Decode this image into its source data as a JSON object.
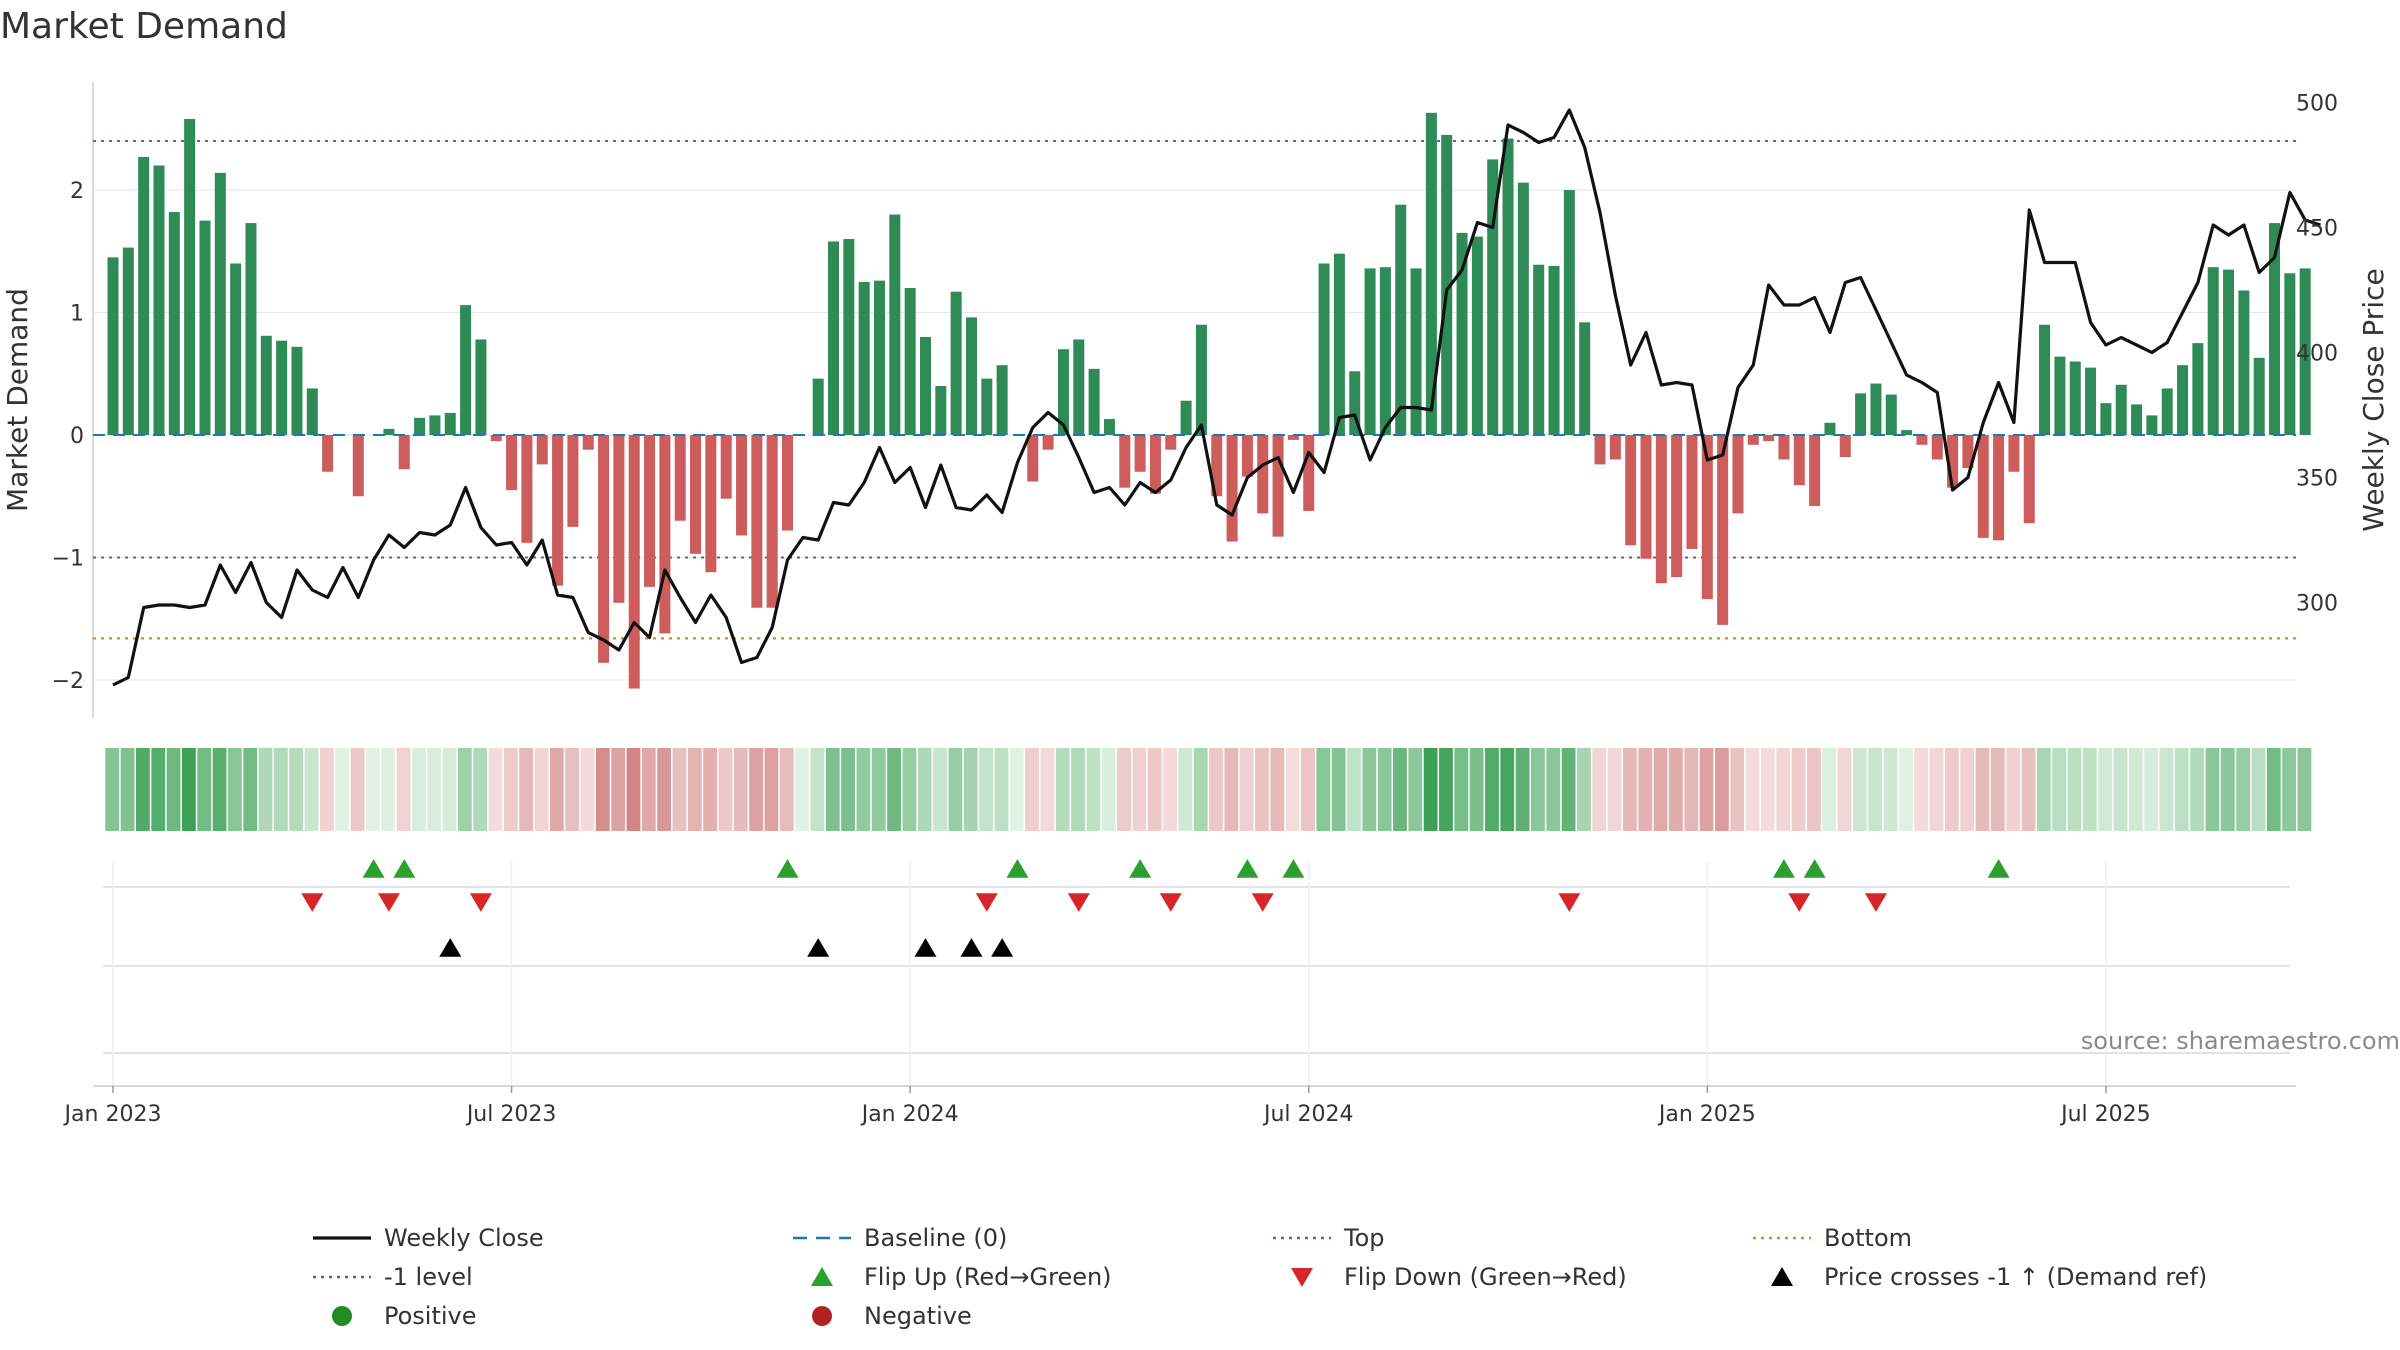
{
  "chart_data": {
    "type": "bar",
    "title": "Market Demand",
    "ylabel_left": "Market Demand",
    "ylabel_right": "Weekly Close Price",
    "ylim_left": [
      -2.3,
      2.9
    ],
    "ylim_right": [
      250,
      510
    ],
    "y_ticks_left": [
      "−2",
      "−1",
      "0",
      "1",
      "2"
    ],
    "y_ticks_left_values": [
      -2,
      -1,
      0,
      1,
      2
    ],
    "y_ticks_right": [
      "300",
      "350",
      "400",
      "450",
      "500"
    ],
    "y_ticks_right_values": [
      300,
      350,
      400,
      450,
      500
    ],
    "x_tick_labels": [
      "Jan 2023",
      "Jul 2023",
      "Jan 2024",
      "Jul 2024",
      "Jan 2025",
      "Jul 2025"
    ],
    "x_tick_weeks": [
      0,
      26,
      52,
      78,
      104,
      130
    ],
    "reference_lines": {
      "top": 2.4,
      "minus_one": -1,
      "bottom": -1.66,
      "baseline": 0
    },
    "demand": [
      1.45,
      1.53,
      2.27,
      2.2,
      1.82,
      2.58,
      1.75,
      2.14,
      1.4,
      1.73,
      0.81,
      0.77,
      0.72,
      0.38,
      -0.3,
      0.0,
      -0.5,
      0.0,
      0.05,
      -0.28,
      0.14,
      0.16,
      0.18,
      1.06,
      0.78,
      -0.05,
      -0.45,
      -0.88,
      -0.24,
      -1.23,
      -0.75,
      -0.12,
      -1.86,
      -1.37,
      -2.07,
      -1.24,
      -1.62,
      -0.7,
      -0.97,
      -1.12,
      -0.52,
      -0.82,
      -1.41,
      -1.41,
      -0.78,
      0.0,
      0.46,
      1.58,
      1.6,
      1.25,
      1.26,
      1.8,
      1.2,
      0.8,
      0.4,
      1.17,
      0.96,
      0.46,
      0.57,
      0.0,
      -0.38,
      -0.12,
      0.7,
      0.78,
      0.54,
      0.13,
      -0.43,
      -0.3,
      -0.48,
      -0.12,
      0.28,
      0.9,
      -0.5,
      -0.87,
      -0.34,
      -0.64,
      -0.83,
      -0.04,
      -0.62,
      1.4,
      1.48,
      0.52,
      1.36,
      1.37,
      1.88,
      1.36,
      2.63,
      2.45,
      1.65,
      1.62,
      2.25,
      2.42,
      2.06,
      1.39,
      1.38,
      2.0,
      0.92,
      -0.24,
      -0.2,
      -0.9,
      -1.01,
      -1.21,
      -1.16,
      -0.93,
      -1.34,
      -1.55,
      -0.64,
      -0.08,
      -0.05,
      -0.2,
      -0.41,
      -0.58,
      0.1,
      -0.18,
      0.34,
      0.42,
      0.33,
      0.04,
      -0.08,
      -0.2,
      -0.43,
      -0.27,
      -0.84,
      -0.86,
      -0.3,
      -0.72,
      0.9,
      0.64,
      0.6,
      0.55,
      0.26,
      0.41,
      0.25,
      0.16,
      0.38,
      0.57,
      0.75,
      1.37,
      1.35,
      1.18,
      0.63,
      1.73,
      1.32,
      1.36
    ],
    "price": [
      267,
      270,
      298,
      299,
      299,
      298,
      299,
      315,
      304,
      316,
      300,
      294,
      313,
      305,
      302,
      314,
      302,
      317,
      327,
      322,
      328,
      327,
      331,
      346,
      330,
      323,
      324,
      315,
      325,
      303,
      302,
      288,
      285,
      281,
      292,
      286,
      313,
      302,
      292,
      303,
      294,
      276,
      278,
      290,
      317,
      326,
      325,
      340,
      339,
      348,
      362,
      348,
      354,
      338,
      355,
      338,
      337,
      343,
      336,
      356,
      370,
      376,
      371,
      358,
      344,
      346,
      339,
      348,
      344,
      349,
      362,
      371,
      339,
      335,
      350,
      355,
      358,
      344,
      360,
      352,
      374,
      375,
      357,
      370,
      378,
      378,
      377,
      425,
      433,
      452,
      450,
      491,
      488,
      484,
      486,
      497,
      482,
      456,
      423,
      395,
      408,
      387,
      388,
      387,
      357,
      359,
      386,
      395,
      427,
      419,
      419,
      422,
      408,
      428,
      430,
      417,
      404,
      391,
      388,
      384,
      345,
      350,
      372,
      388,
      372,
      457,
      436,
      436,
      436,
      412,
      403,
      406,
      403,
      400,
      404,
      416,
      428,
      451,
      447,
      451,
      432,
      438,
      464,
      453,
      451
    ],
    "heat_strip": "per-week shading of demand level (green positive, red negative)",
    "flip_up_weeks": [
      17,
      19,
      44,
      59,
      67,
      74,
      77,
      109,
      111,
      123
    ],
    "flip_down_weeks": [
      13,
      18,
      24,
      57,
      63,
      69,
      75,
      95,
      110,
      115
    ],
    "cross_up_weeks": [
      22,
      46,
      53,
      56,
      58
    ],
    "series": [
      {
        "name": "Weekly Close",
        "color": "#111111"
      },
      {
        "name": "Positive",
        "color": "#2e8b57"
      },
      {
        "name": "Negative",
        "color": "#cd5c5c"
      }
    ]
  },
  "source": "source: sharemaestro.com",
  "legend": [
    {
      "label": "Weekly Close",
      "kind": "solid-line",
      "color": "#111111"
    },
    {
      "label": "Baseline (0)",
      "kind": "dashed-line",
      "color": "#1f77b4"
    },
    {
      "label": "Top",
      "kind": "dotted-line",
      "color": "#6a5acd"
    },
    {
      "label": "Bottom",
      "kind": "dotted-line",
      "color": "#e08a1e"
    },
    {
      "label": "-1 level",
      "kind": "dotted-line",
      "color": "#666666"
    },
    {
      "label": "Flip Up (Red→Green)",
      "kind": "triangle-up",
      "color": "#2ca02c"
    },
    {
      "label": "Flip Down (Green→Red)",
      "kind": "triangle-down",
      "color": "#d62728"
    },
    {
      "label": "Price crosses -1 ↑ (Demand ref)",
      "kind": "triangle-up",
      "color": "#000000"
    },
    {
      "label": "Positive",
      "kind": "dot",
      "color": "#228b22"
    },
    {
      "label": "Negative",
      "kind": "dot",
      "color": "#b22222"
    }
  ],
  "colors": {
    "positive_bar": "#2e8b57",
    "negative_bar": "#cd5c5c",
    "price_line": "#111111",
    "top_line": "#6a5acd",
    "bottom_line": "#e08a1e",
    "minus_one_line": "#666666",
    "baseline": "#1f77b4",
    "flip_up": "#2ca02c",
    "flip_down": "#d62728",
    "cross_up": "#000000",
    "grid": "#e6e6e6"
  }
}
